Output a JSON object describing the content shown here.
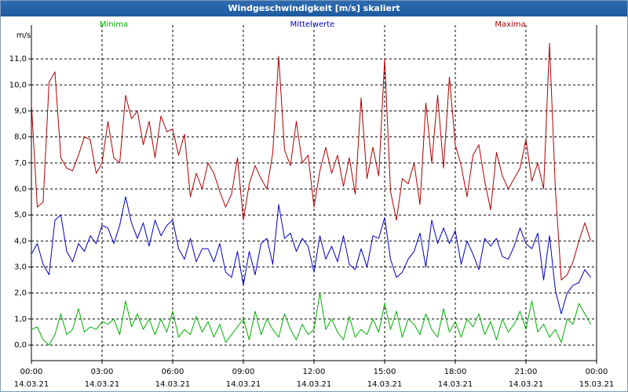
{
  "window": {
    "title": "Windgeschwindigkeit [m/s] skaliert"
  },
  "chart_data": {
    "type": "line",
    "title": "Windgeschwindigkeit [m/s] skaliert",
    "ylabel": "m/s",
    "ylim": [
      -0.6,
      12.3
    ],
    "yticks": [
      "0,0",
      "1,0",
      "2,0",
      "3,0",
      "4,0",
      "5,0",
      "6,0",
      "7,0",
      "8,0",
      "9,0",
      "10,0",
      "11,0"
    ],
    "xlim": [
      "14.03.21 00:00",
      "15.03.21 00:00"
    ],
    "xticks": [
      {
        "time": "00:00",
        "date": "14.03.21"
      },
      {
        "time": "03:00",
        "date": "14.03.21"
      },
      {
        "time": "06:00",
        "date": "14.03.21"
      },
      {
        "time": "09:00",
        "date": "14.03.21"
      },
      {
        "time": "12:00",
        "date": "14.03.21"
      },
      {
        "time": "15:00",
        "date": "14.03.21"
      },
      {
        "time": "18:00",
        "date": "14.03.21"
      },
      {
        "time": "21:00",
        "date": "14.03.21"
      },
      {
        "time": "00:00",
        "date": "15.03.21"
      }
    ],
    "grid": true,
    "legend_position": "top",
    "series": [
      {
        "name": "Minima",
        "color": "#00b000",
        "points": [
          [
            "00:00",
            0.6
          ],
          [
            "00:15",
            0.7
          ],
          [
            "00:30",
            0.2
          ],
          [
            "00:45",
            0.0
          ],
          [
            "01:00",
            0.4
          ],
          [
            "01:15",
            1.2
          ],
          [
            "01:30",
            0.4
          ],
          [
            "01:45",
            0.6
          ],
          [
            "02:00",
            1.4
          ],
          [
            "02:15",
            0.5
          ],
          [
            "02:30",
            0.7
          ],
          [
            "02:45",
            0.6
          ],
          [
            "03:00",
            0.9
          ],
          [
            "03:15",
            0.8
          ],
          [
            "03:30",
            1.0
          ],
          [
            "03:45",
            0.4
          ],
          [
            "04:00",
            1.7
          ],
          [
            "04:15",
            0.7
          ],
          [
            "04:30",
            1.2
          ],
          [
            "04:45",
            0.6
          ],
          [
            "05:00",
            1.0
          ],
          [
            "05:15",
            0.4
          ],
          [
            "05:30",
            1.0
          ],
          [
            "05:45",
            0.5
          ],
          [
            "06:00",
            1.3
          ],
          [
            "06:15",
            0.3
          ],
          [
            "06:30",
            0.6
          ],
          [
            "06:45",
            0.4
          ],
          [
            "07:00",
            1.1
          ],
          [
            "07:15",
            0.5
          ],
          [
            "07:30",
            0.9
          ],
          [
            "07:45",
            0.3
          ],
          [
            "08:00",
            0.8
          ],
          [
            "08:15",
            0.1
          ],
          [
            "08:30",
            0.4
          ],
          [
            "08:45",
            0.7
          ],
          [
            "09:00",
            1.0
          ],
          [
            "09:15",
            0.2
          ],
          [
            "09:30",
            1.3
          ],
          [
            "09:45",
            0.4
          ],
          [
            "10:00",
            1.0
          ],
          [
            "10:15",
            0.6
          ],
          [
            "10:30",
            0.3
          ],
          [
            "10:45",
            1.2
          ],
          [
            "11:00",
            0.6
          ],
          [
            "11:15",
            0.2
          ],
          [
            "11:30",
            0.8
          ],
          [
            "11:45",
            0.4
          ],
          [
            "12:00",
            0.6
          ],
          [
            "12:15",
            2.0
          ],
          [
            "12:30",
            0.6
          ],
          [
            "12:45",
            1.0
          ],
          [
            "13:00",
            0.5
          ],
          [
            "13:15",
            0.2
          ],
          [
            "13:30",
            1.1
          ],
          [
            "13:45",
            0.3
          ],
          [
            "14:00",
            0.6
          ],
          [
            "14:15",
            0.4
          ],
          [
            "14:30",
            1.0
          ],
          [
            "14:45",
            0.5
          ],
          [
            "15:00",
            1.6
          ],
          [
            "15:15",
            0.6
          ],
          [
            "15:30",
            1.3
          ],
          [
            "15:45",
            0.3
          ],
          [
            "16:00",
            1.0
          ],
          [
            "16:15",
            0.8
          ],
          [
            "16:30",
            0.4
          ],
          [
            "16:45",
            1.2
          ],
          [
            "17:00",
            0.6
          ],
          [
            "17:15",
            0.3
          ],
          [
            "17:30",
            1.4
          ],
          [
            "17:45",
            0.5
          ],
          [
            "18:00",
            0.9
          ],
          [
            "18:15",
            0.3
          ],
          [
            "18:30",
            1.0
          ],
          [
            "18:45",
            0.7
          ],
          [
            "19:00",
            1.2
          ],
          [
            "19:15",
            0.4
          ],
          [
            "19:30",
            0.9
          ],
          [
            "19:45",
            0.2
          ],
          [
            "20:00",
            1.0
          ],
          [
            "20:15",
            0.5
          ],
          [
            "20:30",
            0.8
          ],
          [
            "20:45",
            1.3
          ],
          [
            "21:00",
            0.6
          ],
          [
            "21:15",
            1.7
          ],
          [
            "21:30",
            0.5
          ],
          [
            "21:45",
            0.8
          ],
          [
            "22:00",
            0.3
          ],
          [
            "22:15",
            0.6
          ],
          [
            "22:30",
            0.1
          ],
          [
            "22:45",
            1.0
          ],
          [
            "23:00",
            0.8
          ],
          [
            "23:15",
            1.6
          ],
          [
            "23:30",
            1.2
          ],
          [
            "23:45",
            0.8
          ]
        ]
      },
      {
        "name": "Mittelwerte",
        "color": "#0000c0",
        "points": [
          [
            "00:00",
            3.5
          ],
          [
            "00:15",
            3.9
          ],
          [
            "00:30",
            3.1
          ],
          [
            "00:45",
            2.7
          ],
          [
            "01:00",
            4.8
          ],
          [
            "01:15",
            5.0
          ],
          [
            "01:30",
            3.6
          ],
          [
            "01:45",
            3.2
          ],
          [
            "02:00",
            3.9
          ],
          [
            "02:15",
            3.6
          ],
          [
            "02:30",
            4.2
          ],
          [
            "02:45",
            3.9
          ],
          [
            "03:00",
            4.6
          ],
          [
            "03:15",
            4.5
          ],
          [
            "03:30",
            3.9
          ],
          [
            "03:45",
            4.6
          ],
          [
            "04:00",
            5.7
          ],
          [
            "04:15",
            4.7
          ],
          [
            "04:30",
            4.1
          ],
          [
            "04:45",
            4.7
          ],
          [
            "05:00",
            3.8
          ],
          [
            "05:15",
            4.8
          ],
          [
            "05:30",
            4.2
          ],
          [
            "05:45",
            4.6
          ],
          [
            "06:00",
            4.8
          ],
          [
            "06:15",
            3.7
          ],
          [
            "06:30",
            3.3
          ],
          [
            "06:45",
            4.1
          ],
          [
            "07:00",
            3.2
          ],
          [
            "07:15",
            3.7
          ],
          [
            "07:30",
            3.7
          ],
          [
            "07:45",
            3.2
          ],
          [
            "08:00",
            3.9
          ],
          [
            "08:15",
            2.8
          ],
          [
            "08:30",
            2.6
          ],
          [
            "08:45",
            3.6
          ],
          [
            "09:00",
            2.3
          ],
          [
            "09:15",
            3.6
          ],
          [
            "09:30",
            2.7
          ],
          [
            "09:45",
            3.9
          ],
          [
            "10:00",
            4.1
          ],
          [
            "10:15",
            3.1
          ],
          [
            "10:30",
            5.4
          ],
          [
            "10:45",
            4.1
          ],
          [
            "11:00",
            4.3
          ],
          [
            "11:15",
            3.6
          ],
          [
            "11:30",
            4.1
          ],
          [
            "11:45",
            3.8
          ],
          [
            "12:00",
            2.8
          ],
          [
            "12:15",
            4.2
          ],
          [
            "12:30",
            3.3
          ],
          [
            "12:45",
            3.8
          ],
          [
            "13:00",
            3.2
          ],
          [
            "13:15",
            4.2
          ],
          [
            "13:30",
            3.1
          ],
          [
            "13:45",
            2.9
          ],
          [
            "14:00",
            3.7
          ],
          [
            "14:15",
            3.0
          ],
          [
            "14:30",
            4.2
          ],
          [
            "14:45",
            4.1
          ],
          [
            "15:00",
            4.9
          ],
          [
            "15:15",
            3.3
          ],
          [
            "15:30",
            2.6
          ],
          [
            "15:45",
            2.8
          ],
          [
            "16:00",
            3.3
          ],
          [
            "16:15",
            3.6
          ],
          [
            "16:30",
            4.3
          ],
          [
            "16:45",
            3.0
          ],
          [
            "17:00",
            4.8
          ],
          [
            "17:15",
            3.9
          ],
          [
            "17:30",
            4.5
          ],
          [
            "17:45",
            3.9
          ],
          [
            "18:00",
            4.4
          ],
          [
            "18:15",
            3.1
          ],
          [
            "18:30",
            4.0
          ],
          [
            "18:45",
            3.5
          ],
          [
            "19:00",
            2.9
          ],
          [
            "19:15",
            4.1
          ],
          [
            "19:30",
            3.8
          ],
          [
            "19:45",
            4.1
          ],
          [
            "20:00",
            3.4
          ],
          [
            "20:15",
            3.3
          ],
          [
            "20:30",
            3.8
          ],
          [
            "20:45",
            4.5
          ],
          [
            "21:00",
            3.9
          ],
          [
            "21:15",
            3.7
          ],
          [
            "21:30",
            4.3
          ],
          [
            "21:45",
            2.5
          ],
          [
            "22:00",
            4.2
          ],
          [
            "22:15",
            2.1
          ],
          [
            "22:30",
            1.2
          ],
          [
            "22:45",
            2.0
          ],
          [
            "23:00",
            2.3
          ],
          [
            "23:15",
            2.4
          ],
          [
            "23:30",
            2.9
          ],
          [
            "23:45",
            2.6
          ]
        ]
      },
      {
        "name": "Maxima",
        "color": "#b00000",
        "points": [
          [
            "00:00",
            9.3
          ],
          [
            "00:15",
            5.3
          ],
          [
            "00:30",
            5.5
          ],
          [
            "00:45",
            10.1
          ],
          [
            "01:00",
            10.5
          ],
          [
            "01:15",
            7.2
          ],
          [
            "01:30",
            6.8
          ],
          [
            "01:45",
            6.7
          ],
          [
            "02:00",
            7.3
          ],
          [
            "02:15",
            8.0
          ],
          [
            "02:30",
            7.9
          ],
          [
            "02:45",
            6.6
          ],
          [
            "03:00",
            7.0
          ],
          [
            "03:15",
            8.6
          ],
          [
            "03:30",
            7.2
          ],
          [
            "03:45",
            7.0
          ],
          [
            "04:00",
            9.6
          ],
          [
            "04:15",
            8.7
          ],
          [
            "04:30",
            9.0
          ],
          [
            "04:45",
            7.7
          ],
          [
            "05:00",
            8.6
          ],
          [
            "05:15",
            7.2
          ],
          [
            "05:30",
            8.8
          ],
          [
            "05:45",
            8.2
          ],
          [
            "06:00",
            8.3
          ],
          [
            "06:15",
            7.3
          ],
          [
            "06:30",
            8.1
          ],
          [
            "06:45",
            5.7
          ],
          [
            "07:00",
            6.6
          ],
          [
            "07:15",
            6.0
          ],
          [
            "07:30",
            7.0
          ],
          [
            "07:45",
            6.6
          ],
          [
            "08:00",
            5.9
          ],
          [
            "08:15",
            5.3
          ],
          [
            "08:30",
            5.8
          ],
          [
            "08:45",
            7.2
          ],
          [
            "09:00",
            4.8
          ],
          [
            "09:15",
            6.2
          ],
          [
            "09:30",
            6.9
          ],
          [
            "09:45",
            6.4
          ],
          [
            "10:00",
            6.0
          ],
          [
            "10:15",
            7.4
          ],
          [
            "10:30",
            11.1
          ],
          [
            "10:45",
            7.5
          ],
          [
            "11:00",
            6.9
          ],
          [
            "11:15",
            8.6
          ],
          [
            "11:30",
            7.0
          ],
          [
            "11:45",
            7.3
          ],
          [
            "12:00",
            5.3
          ],
          [
            "12:15",
            6.7
          ],
          [
            "12:30",
            7.6
          ],
          [
            "12:45",
            6.6
          ],
          [
            "13:00",
            7.3
          ],
          [
            "13:15",
            6.1
          ],
          [
            "13:30",
            7.2
          ],
          [
            "13:45",
            5.8
          ],
          [
            "14:00",
            9.5
          ],
          [
            "14:15",
            6.4
          ],
          [
            "14:30",
            7.6
          ],
          [
            "14:45",
            6.5
          ],
          [
            "15:00",
            11.0
          ],
          [
            "15:15",
            5.9
          ],
          [
            "15:30",
            4.8
          ],
          [
            "15:45",
            6.4
          ],
          [
            "16:00",
            6.2
          ],
          [
            "16:15",
            7.0
          ],
          [
            "16:30",
            5.4
          ],
          [
            "16:45",
            9.3
          ],
          [
            "17:00",
            7.0
          ],
          [
            "17:15",
            9.6
          ],
          [
            "17:30",
            6.8
          ],
          [
            "17:45",
            10.3
          ],
          [
            "18:00",
            7.7
          ],
          [
            "18:15",
            6.9
          ],
          [
            "18:30",
            5.7
          ],
          [
            "18:45",
            7.3
          ],
          [
            "19:00",
            7.7
          ],
          [
            "19:15",
            6.3
          ],
          [
            "19:30",
            5.2
          ],
          [
            "19:45",
            7.4
          ],
          [
            "20:00",
            6.5
          ],
          [
            "20:15",
            6.0
          ],
          [
            "20:30",
            6.4
          ],
          [
            "20:45",
            6.8
          ],
          [
            "21:00",
            7.9
          ],
          [
            "21:15",
            6.3
          ],
          [
            "21:30",
            7.0
          ],
          [
            "21:45",
            6.0
          ],
          [
            "22:00",
            11.6
          ],
          [
            "22:15",
            6.0
          ],
          [
            "22:30",
            2.5
          ],
          [
            "22:45",
            2.7
          ],
          [
            "23:00",
            3.2
          ],
          [
            "23:15",
            4.0
          ],
          [
            "23:30",
            4.7
          ],
          [
            "23:45",
            4.0
          ]
        ]
      }
    ]
  }
}
